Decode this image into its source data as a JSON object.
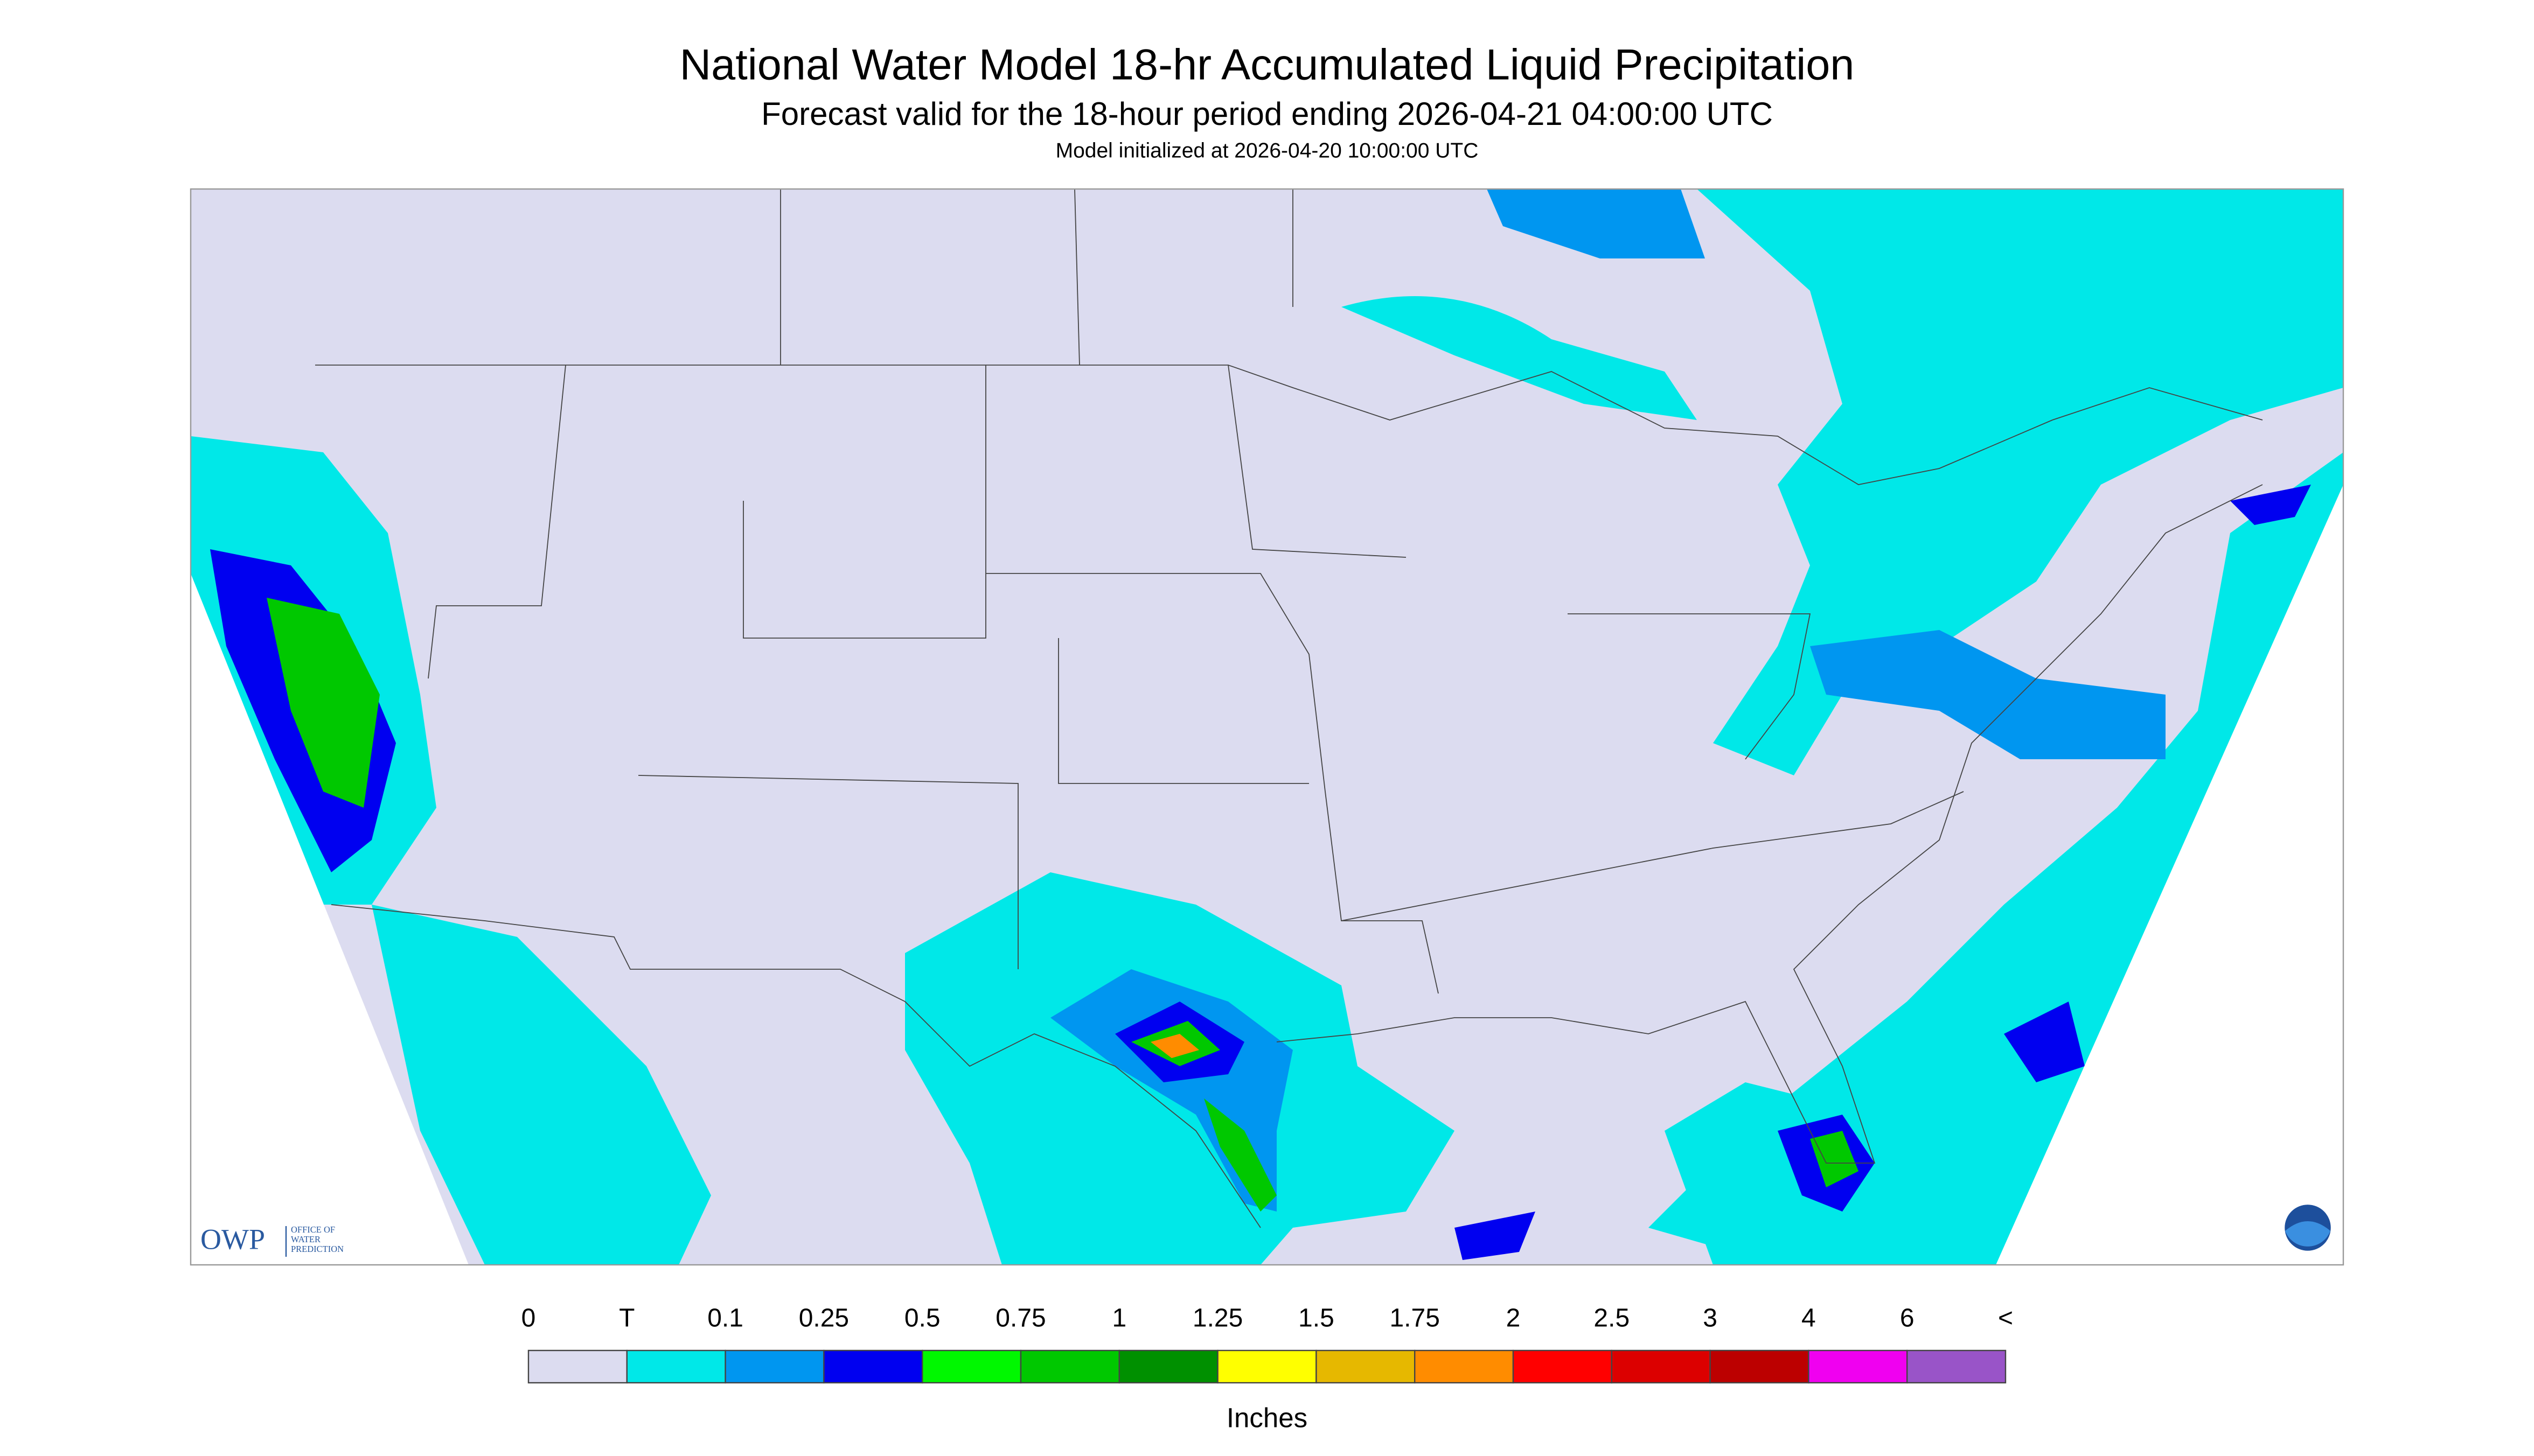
{
  "header": {
    "title": "National Water Model 18-hr Accumulated Liquid Precipitation",
    "subtitle": "Forecast valid for the 18-hour period ending 2026-04-21 04:00:00 UTC",
    "initialized": "Model initialized at 2026-04-20 10:00:00 UTC"
  },
  "legend": {
    "labels": [
      "0",
      "T",
      "0.1",
      "0.25",
      "0.5",
      "0.75",
      "1",
      "1.25",
      "1.5",
      "1.75",
      "2",
      "2.5",
      "3",
      "4",
      "6",
      "<"
    ],
    "colors": [
      "#dcdcf0",
      "#00e8e8",
      "#0096f0",
      "#0000f0",
      "#00f800",
      "#00c800",
      "#009000",
      "#ffff00",
      "#e6b800",
      "#ff8c00",
      "#ff0000",
      "#dc0000",
      "#bc0000",
      "#f000f0",
      "#9954c8"
    ],
    "unit": "Inches"
  },
  "logo": {
    "name": "OWP",
    "lines": [
      "OFFICE OF",
      "WATER",
      "PREDICTION"
    ]
  }
}
